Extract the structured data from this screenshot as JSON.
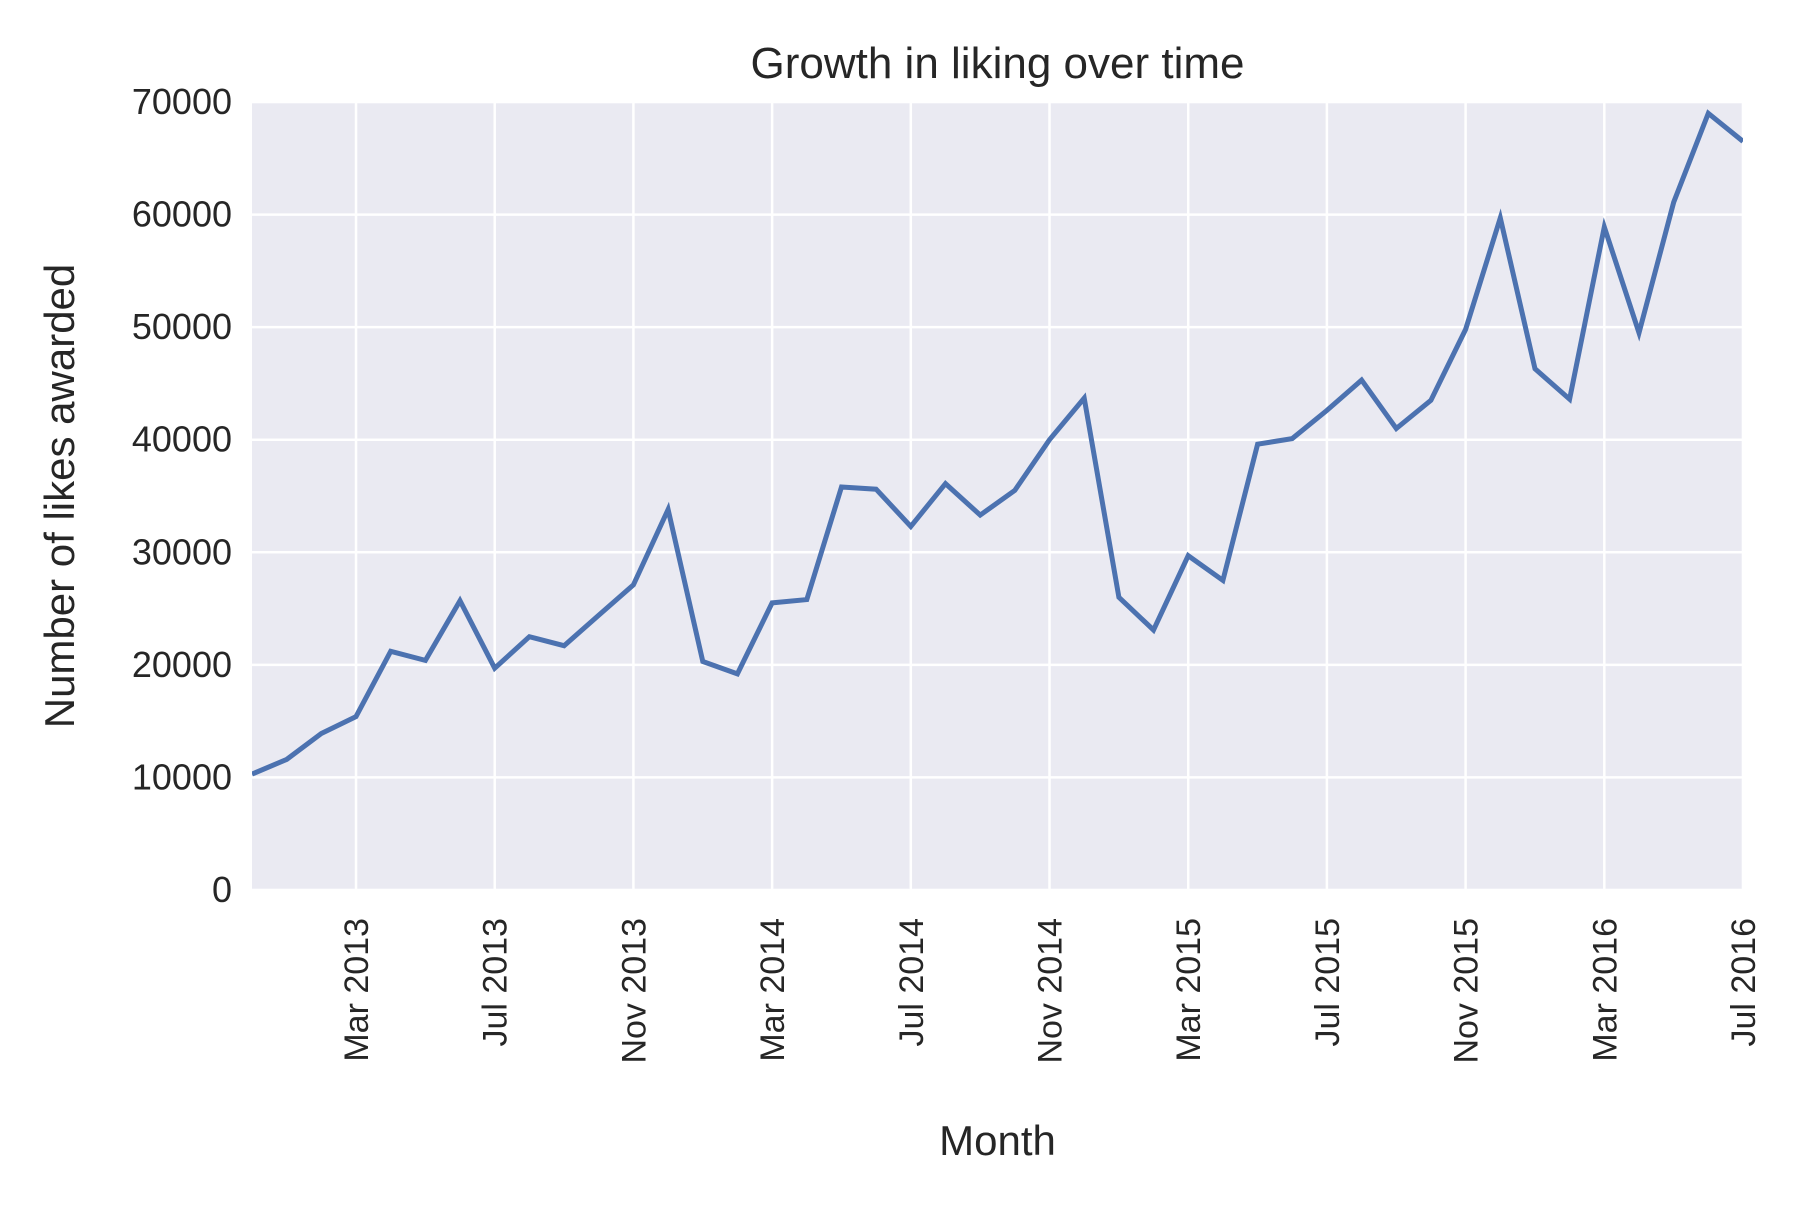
{
  "chart_data": {
    "type": "line",
    "title": "Growth in liking over time",
    "xlabel": "Month",
    "ylabel": "Number of likes awarded",
    "ylim": [
      0,
      70000
    ],
    "xlim": [
      "2012-12",
      "2016-07"
    ],
    "grid": true,
    "colors": {
      "background": "#eaeaf2",
      "grid": "#ffffff",
      "line": "#4c72b0",
      "text": "#262626"
    },
    "y_ticks": [
      "0",
      "10000",
      "20000",
      "30000",
      "40000",
      "50000",
      "60000",
      "70000"
    ],
    "x_ticks": [
      {
        "label": "Mar 2013",
        "date": "2013-03"
      },
      {
        "label": "Jul 2013",
        "date": "2013-07"
      },
      {
        "label": "Nov 2013",
        "date": "2013-11"
      },
      {
        "label": "Mar 2014",
        "date": "2014-03"
      },
      {
        "label": "Jul 2014",
        "date": "2014-07"
      },
      {
        "label": "Nov 2014",
        "date": "2014-11"
      },
      {
        "label": "Mar 2015",
        "date": "2015-03"
      },
      {
        "label": "Jul 2015",
        "date": "2015-07"
      },
      {
        "label": "Nov 2015",
        "date": "2015-11"
      },
      {
        "label": "Mar 2016",
        "date": "2016-03"
      },
      {
        "label": "Jul 2016",
        "date": "2016-07"
      }
    ],
    "x": [
      "2012-12",
      "2013-01",
      "2013-02",
      "2013-03",
      "2013-04",
      "2013-05",
      "2013-06",
      "2013-07",
      "2013-08",
      "2013-09",
      "2013-10",
      "2013-11",
      "2013-12",
      "2014-01",
      "2014-02",
      "2014-03",
      "2014-04",
      "2014-05",
      "2014-06",
      "2014-07",
      "2014-08",
      "2014-09",
      "2014-10",
      "2014-11",
      "2014-12",
      "2015-01",
      "2015-02",
      "2015-03",
      "2015-04",
      "2015-05",
      "2015-06",
      "2015-07",
      "2015-08",
      "2015-09",
      "2015-10",
      "2015-11",
      "2015-12",
      "2016-01",
      "2016-02",
      "2016-03",
      "2016-04",
      "2016-05",
      "2016-06",
      "2016-07"
    ],
    "series": [
      {
        "values": [
          10300,
          11600,
          13900,
          15400,
          21200,
          20400,
          25700,
          19700,
          22500,
          21700,
          24400,
          27100,
          33800,
          20300,
          19200,
          25500,
          25800,
          35800,
          35600,
          32300,
          36100,
          33300,
          35500,
          40000,
          43700,
          26000,
          23100,
          29700,
          27500,
          39600,
          40100,
          42600,
          45300,
          41000,
          43500,
          49800,
          59700,
          46300,
          43600,
          58900,
          49500,
          61100,
          69000,
          66500
        ]
      }
    ]
  }
}
